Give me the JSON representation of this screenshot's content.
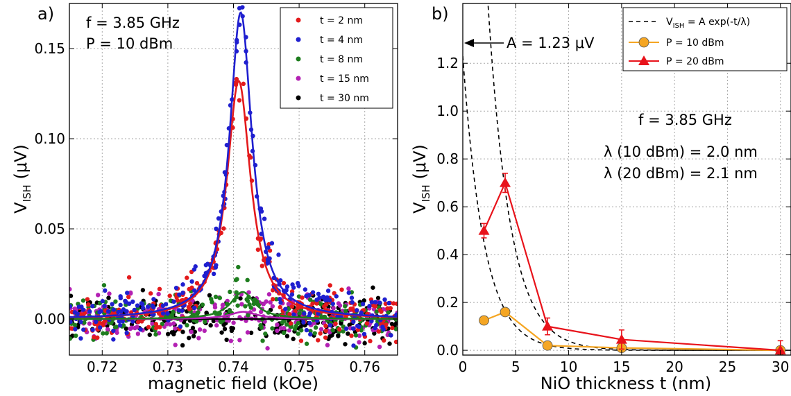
{
  "chart_data": [
    {
      "panel": "a)",
      "type": "scatter",
      "xlabel": "magnetic field (kOe)",
      "ylabel_main": "V",
      "ylabel_sub": "ISH",
      "ylabel_unit": " (μV)",
      "xlim": [
        0.715,
        0.765
      ],
      "ylim": [
        -0.02,
        0.175
      ],
      "xticks": [
        0.72,
        0.73,
        0.74,
        0.75,
        0.76
      ],
      "xtick_labels": [
        "0.72",
        "0.73",
        "0.74",
        "0.75",
        "0.76"
      ],
      "yticks": [
        0.0,
        0.05,
        0.1,
        0.15
      ],
      "ytick_labels": [
        "0.00",
        "0.05",
        "0.10",
        "0.15"
      ],
      "grid": true,
      "legend_position": "top-right",
      "annotations": [
        "f = 3.85 GHz",
        "P = 10 dBm"
      ],
      "series": [
        {
          "name": "t = 2 nm",
          "color": "#e31a1c",
          "center": 0.7408,
          "width": 0.0022,
          "peak": 0.132,
          "noise": 0.012
        },
        {
          "name": "t = 4 nm",
          "color": "#1f1fcf",
          "center": 0.7411,
          "width": 0.0021,
          "peak": 0.17,
          "noise": 0.012
        },
        {
          "name": "t = 8 nm",
          "color": "#1e7d1e",
          "center": 0.7414,
          "width": 0.0022,
          "peak": 0.015,
          "noise": 0.011
        },
        {
          "name": "t = 15 nm",
          "color": "#b320b3",
          "center": 0.7415,
          "width": 0.0025,
          "peak": 0.004,
          "noise": 0.011
        },
        {
          "name": "t = 30 nm",
          "color": "#000000",
          "center": 0.7415,
          "width": 0.0025,
          "peak": 0.0,
          "noise": 0.011
        }
      ]
    },
    {
      "panel": "b)",
      "type": "line",
      "xlabel": "NiO thickness t (nm)",
      "ylabel_main": "V",
      "ylabel_sub": "ISH",
      "ylabel_unit": " (μV)",
      "xlim": [
        0,
        31
      ],
      "ylim": [
        -0.02,
        1.45
      ],
      "xticks": [
        0,
        5,
        10,
        15,
        20,
        25,
        30
      ],
      "xtick_labels": [
        "0",
        "5",
        "10",
        "15",
        "20",
        "25",
        "30"
      ],
      "yticks": [
        0.0,
        0.2,
        0.4,
        0.6,
        0.8,
        1.0,
        1.2
      ],
      "ytick_labels": [
        "0.0",
        "0.2",
        "0.4",
        "0.6",
        "0.8",
        "1.0",
        "1.2"
      ],
      "grid": true,
      "legend_position": "top-right",
      "arrow_label": "A = 1.23 μV",
      "annotations": [
        "f = 3.85 GHz",
        "λ (10 dBm) = 2.0 nm",
        "λ (20 dBm) = 2.1 nm"
      ],
      "legend": {
        "fit_main": "V",
        "fit_sub": "ISH",
        "fit_rest": " = A exp(-t/λ)"
      },
      "fits": [
        {
          "A": 1.23,
          "lambda": 2.0
        },
        {
          "A": 4.5,
          "lambda": 2.1
        }
      ],
      "series": [
        {
          "name": "P = 10 dBm",
          "color": "#f5a623",
          "marker": "circle",
          "x": [
            2,
            4,
            8,
            15,
            30
          ],
          "y": [
            0.125,
            0.16,
            0.02,
            0.01,
            0.0
          ],
          "err": [
            0.0,
            0.0,
            0.0,
            0.0,
            0.0
          ]
        },
        {
          "name": "P = 20 dBm",
          "color": "#e8131b",
          "marker": "triangle",
          "x": [
            2,
            4,
            8,
            15,
            30
          ],
          "y": [
            0.5,
            0.7,
            0.1,
            0.045,
            0.0
          ],
          "err": [
            0.03,
            0.04,
            0.035,
            0.04,
            0.04
          ]
        }
      ]
    }
  ]
}
